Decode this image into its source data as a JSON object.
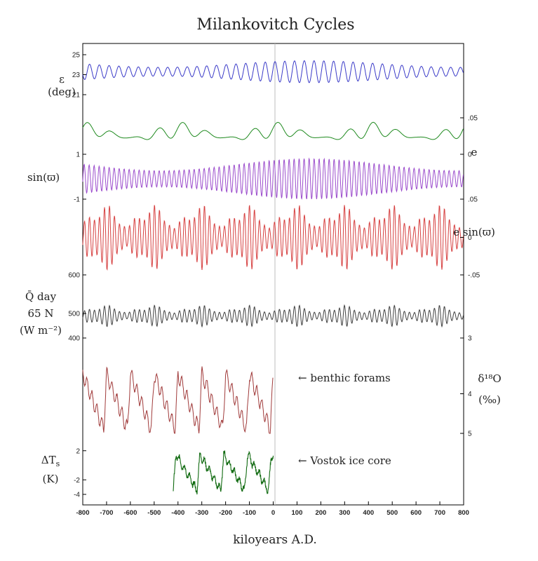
{
  "chart_data": {
    "type": "line",
    "title": "Milankovitch Cycles",
    "xlabel": "kiloyears A.D.",
    "xlim": [
      -800,
      800
    ],
    "x_ticks": [
      -800,
      -700,
      -600,
      -500,
      -400,
      -300,
      -200,
      -100,
      0,
      100,
      200,
      300,
      400,
      500,
      600,
      700,
      800
    ],
    "x_tick_labels": [
      "-800",
      "-700",
      "-600",
      "-500",
      "-400",
      "-300",
      "-200",
      "-100",
      "0",
      "100",
      "200",
      "300",
      "400",
      "500",
      "600",
      "700",
      "800"
    ],
    "grid": false,
    "panels": [
      {
        "id": "obliquity",
        "left_label": "ε (deg)",
        "right_label": "",
        "color": "#3a3ac8",
        "ylim": [
          21,
          25
        ],
        "left_ticks": [
          {
            "v": 25,
            "t": "25"
          },
          {
            "v": 23,
            "t": "23"
          },
          {
            "v": 21,
            "t": "21"
          }
        ],
        "right_ticks": [],
        "model": {
          "kind": "sine",
          "center": 23.3,
          "amp": 1.1,
          "period_ky": 41
        }
      },
      {
        "id": "eccentricity",
        "left_label": "",
        "right_label": "e",
        "color": "#1f8a1f",
        "ylim": [
          0,
          0.05
        ],
        "left_ticks": [
          {
            "v": 0.0,
            "t": "1"
          }
        ],
        "right_ticks": [
          {
            "v": 0.05,
            "t": ".05"
          },
          {
            "v": 0.0,
            "t": "0"
          }
        ],
        "model": {
          "kind": "eccentricity",
          "center": 0.028,
          "amp": 0.016,
          "period_ky": 100,
          "long_period_ky": 405
        }
      },
      {
        "id": "precession-sine",
        "left_label": "sin(ϖ)",
        "right_label": "",
        "color": "#9b4ccc",
        "ylim": [
          -1,
          1
        ],
        "left_ticks": [
          {
            "v": -1,
            "t": "-1"
          }
        ],
        "right_ticks": [
          {
            "v": -1,
            "t": ".05"
          }
        ],
        "model": {
          "kind": "sine",
          "center": 0,
          "amp": 1,
          "period_ky": 21
        }
      },
      {
        "id": "precession-index",
        "left_label": "",
        "right_label": "e sin(ϖ)",
        "color": "#d64040",
        "ylim": [
          -0.05,
          0.05
        ],
        "left_ticks": [
          {
            "v": -0.05,
            "t": "600"
          }
        ],
        "right_ticks": [
          {
            "v": 0,
            "t": "0"
          },
          {
            "v": -0.05,
            "t": "-.05"
          }
        ],
        "model": {
          "kind": "modulated",
          "center": 0,
          "amp": 0.045,
          "period_ky": 21
        }
      },
      {
        "id": "insolation",
        "left_label": "Q̄ day 65 N (W m⁻²)",
        "right_label": "",
        "color": "#404040",
        "ylim": [
          400,
          600
        ],
        "left_ticks": [
          {
            "v": 500,
            "t": "500"
          },
          {
            "v": 400,
            "t": "400"
          }
        ],
        "right_ticks": [
          {
            "v": 400,
            "t": "3"
          }
        ],
        "model": {
          "kind": "modulated",
          "center": 490,
          "amp": 45,
          "period_ky": 21
        }
      },
      {
        "id": "benthic",
        "left_label": "",
        "right_label": "δ18O (‰)",
        "color": "#a03a3a",
        "ylim": [
          5,
          3
        ],
        "left_ticks": [],
        "right_ticks": [
          {
            "v": 4,
            "t": "4"
          },
          {
            "v": 5,
            "t": "5"
          }
        ],
        "annotation": "← benthic forams",
        "model": {
          "kind": "sawtooth",
          "low": 3.5,
          "high": 4.9,
          "period_ky": 100,
          "start": -800,
          "end": 0
        }
      },
      {
        "id": "vostok",
        "left_label": "ΔTs (K)",
        "right_label": "",
        "color": "#106a10",
        "ylim": [
          -4,
          4
        ],
        "left_ticks": [
          {
            "v": 2,
            "t": "2"
          },
          {
            "v": -2,
            "t": "-2"
          },
          {
            "v": -4,
            "t": "-4"
          }
        ],
        "right_ticks": [],
        "annotation": "← Vostok ice core",
        "model": {
          "kind": "sawtooth_inv",
          "low": -3.5,
          "high": 1.5,
          "period_ky": 100,
          "start": -420,
          "end": 0
        }
      }
    ]
  }
}
